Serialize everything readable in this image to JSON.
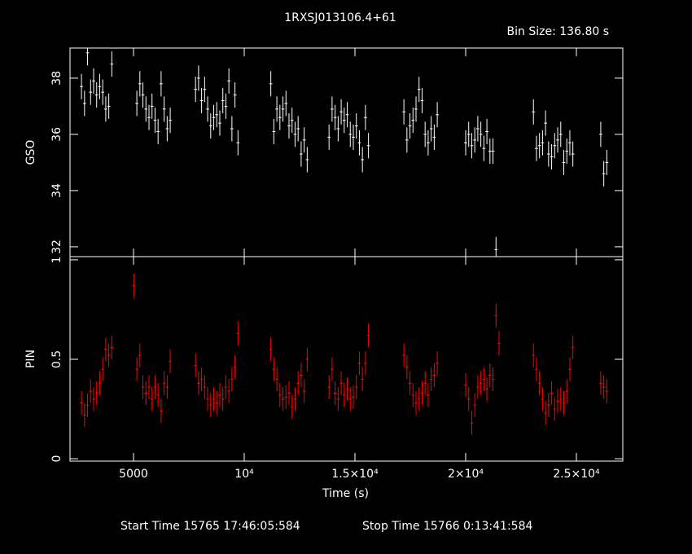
{
  "title": "1RXSJ013106.4+61",
  "bin_size": "Bin Size: 136.80 s",
  "start_time": "Start Time 15765 17:46:05:584",
  "stop_time": "Stop Time 15766  0:13:41:584",
  "chart_data": [
    {
      "type": "scatter",
      "ylabel": "GSO",
      "color": "#ffffff",
      "xerr": 68.4,
      "yerr": 0.45,
      "xlim": [
        2132,
        27096
      ],
      "ylim": [
        31.65,
        39.07
      ],
      "yticks": [
        32,
        34,
        36,
        38
      ],
      "x": [
        2650,
        2787,
        2924,
        3061,
        3198,
        3335,
        3472,
        3609,
        3746,
        3883,
        4020,
        5150,
        5287,
        5424,
        5561,
        5698,
        5835,
        5972,
        6109,
        6246,
        6383,
        6520,
        6657,
        7800,
        7937,
        8074,
        8211,
        8348,
        8485,
        8622,
        8759,
        8896,
        9033,
        9170,
        9307,
        9444,
        9581,
        9718,
        11200,
        11337,
        11474,
        11611,
        11748,
        11885,
        12022,
        12159,
        12296,
        12433,
        12570,
        12707,
        12844,
        13830,
        13967,
        14104,
        14241,
        14378,
        14515,
        14652,
        14789,
        14926,
        15063,
        15200,
        15337,
        15474,
        15611,
        17210,
        17347,
        17484,
        17621,
        17758,
        17895,
        18032,
        18169,
        18306,
        18443,
        18580,
        18717,
        20000,
        20137,
        20274,
        20411,
        20548,
        20685,
        20822,
        20959,
        21096,
        21233,
        21370,
        23060,
        23197,
        23334,
        23471,
        23608,
        23745,
        23882,
        24019,
        24156,
        24293,
        24430,
        24567,
        24704,
        24841,
        26100,
        26237,
        26374
      ],
      "values": [
        37.7,
        37.1,
        38.9,
        37.5,
        37.9,
        37.4,
        37.7,
        37.5,
        36.9,
        37.0,
        38.5,
        37.1,
        37.8,
        37.4,
        36.9,
        36.6,
        37.0,
        36.5,
        36.1,
        37.8,
        36.9,
        36.2,
        36.5,
        37.6,
        38.0,
        37.2,
        37.6,
        36.9,
        36.3,
        36.6,
        36.7,
        36.4,
        37.2,
        37.0,
        37.9,
        36.2,
        37.4,
        35.7,
        37.8,
        36.1,
        36.9,
        36.6,
        36.9,
        37.1,
        36.3,
        36.5,
        36.0,
        36.2,
        35.3,
        35.8,
        35.1,
        35.9,
        36.9,
        36.6,
        36.2,
        36.8,
        36.5,
        36.7,
        36.0,
        35.9,
        36.3,
        35.7,
        35.1,
        36.6,
        35.6,
        36.8,
        35.8,
        36.3,
        36.5,
        36.9,
        37.6,
        37.2,
        36.0,
        35.7,
        36.2,
        35.9,
        36.7,
        35.7,
        36.0,
        35.6,
        35.8,
        36.2,
        36.0,
        35.5,
        36.1,
        35.4,
        35.4,
        31.9,
        36.8,
        35.5,
        35.6,
        35.7,
        36.4,
        35.3,
        35.2,
        35.6,
        35.8,
        36.0,
        35.0,
        35.4,
        35.7,
        35.3,
        36.0,
        34.6,
        35.0
      ]
    },
    {
      "type": "scatter",
      "ylabel": "PIN",
      "xlabel": "Time (s)",
      "color": "#ff0000",
      "xerr": 68.4,
      "yerr": 0.06,
      "xlim": [
        2132,
        27096
      ],
      "ylim": [
        -0.012,
        1.016
      ],
      "yticks": [
        0,
        0.5,
        1
      ],
      "xticks": [
        {
          "value": 5000,
          "label": "5000"
        },
        {
          "value": 10000,
          "label": "10⁴"
        },
        {
          "value": 15000,
          "label": "1.5×10⁴"
        },
        {
          "value": 20000,
          "label": "2×10⁴"
        },
        {
          "value": 25000,
          "label": "2.5×10⁴"
        }
      ],
      "x": [
        2650,
        2787,
        2924,
        3061,
        3198,
        3335,
        3472,
        3609,
        3746,
        3883,
        4020,
        5013,
        5150,
        5287,
        5424,
        5561,
        5698,
        5835,
        5972,
        6109,
        6246,
        6383,
        6520,
        6657,
        7800,
        7937,
        8074,
        8211,
        8348,
        8485,
        8622,
        8759,
        8896,
        9033,
        9170,
        9307,
        9444,
        9581,
        9718,
        11200,
        11337,
        11474,
        11611,
        11748,
        11885,
        12022,
        12159,
        12296,
        12433,
        12570,
        12707,
        12844,
        13830,
        13967,
        14104,
        14241,
        14378,
        14515,
        14652,
        14789,
        14926,
        15063,
        15200,
        15337,
        15474,
        15611,
        17210,
        17347,
        17484,
        17621,
        17758,
        17895,
        18032,
        18169,
        18306,
        18443,
        18580,
        18717,
        20000,
        20137,
        20274,
        20411,
        20548,
        20685,
        20822,
        20959,
        21096,
        21233,
        21370,
        21507,
        23060,
        23197,
        23334,
        23471,
        23608,
        23745,
        23882,
        24019,
        24156,
        24293,
        24430,
        24567,
        24704,
        24841,
        26100,
        26237,
        26374
      ],
      "values": [
        0.28,
        0.22,
        0.27,
        0.34,
        0.3,
        0.33,
        0.38,
        0.45,
        0.55,
        0.52,
        0.56,
        0.87,
        0.45,
        0.52,
        0.36,
        0.33,
        0.36,
        0.3,
        0.36,
        0.32,
        0.24,
        0.38,
        0.36,
        0.49,
        0.47,
        0.38,
        0.4,
        0.36,
        0.3,
        0.27,
        0.3,
        0.28,
        0.32,
        0.3,
        0.36,
        0.34,
        0.4,
        0.46,
        0.63,
        0.55,
        0.45,
        0.4,
        0.32,
        0.3,
        0.31,
        0.33,
        0.26,
        0.3,
        0.38,
        0.42,
        0.34,
        0.5,
        0.36,
        0.45,
        0.33,
        0.3,
        0.38,
        0.32,
        0.35,
        0.3,
        0.31,
        0.36,
        0.48,
        0.4,
        0.48,
        0.62,
        0.52,
        0.46,
        0.38,
        0.32,
        0.28,
        0.3,
        0.33,
        0.38,
        0.32,
        0.4,
        0.42,
        0.48,
        0.37,
        0.3,
        0.18,
        0.27,
        0.36,
        0.38,
        0.4,
        0.35,
        0.42,
        0.4,
        0.72,
        0.58,
        0.52,
        0.45,
        0.38,
        0.3,
        0.23,
        0.27,
        0.33,
        0.25,
        0.29,
        0.3,
        0.28,
        0.34,
        0.45,
        0.56,
        0.38,
        0.36,
        0.34
      ]
    }
  ]
}
